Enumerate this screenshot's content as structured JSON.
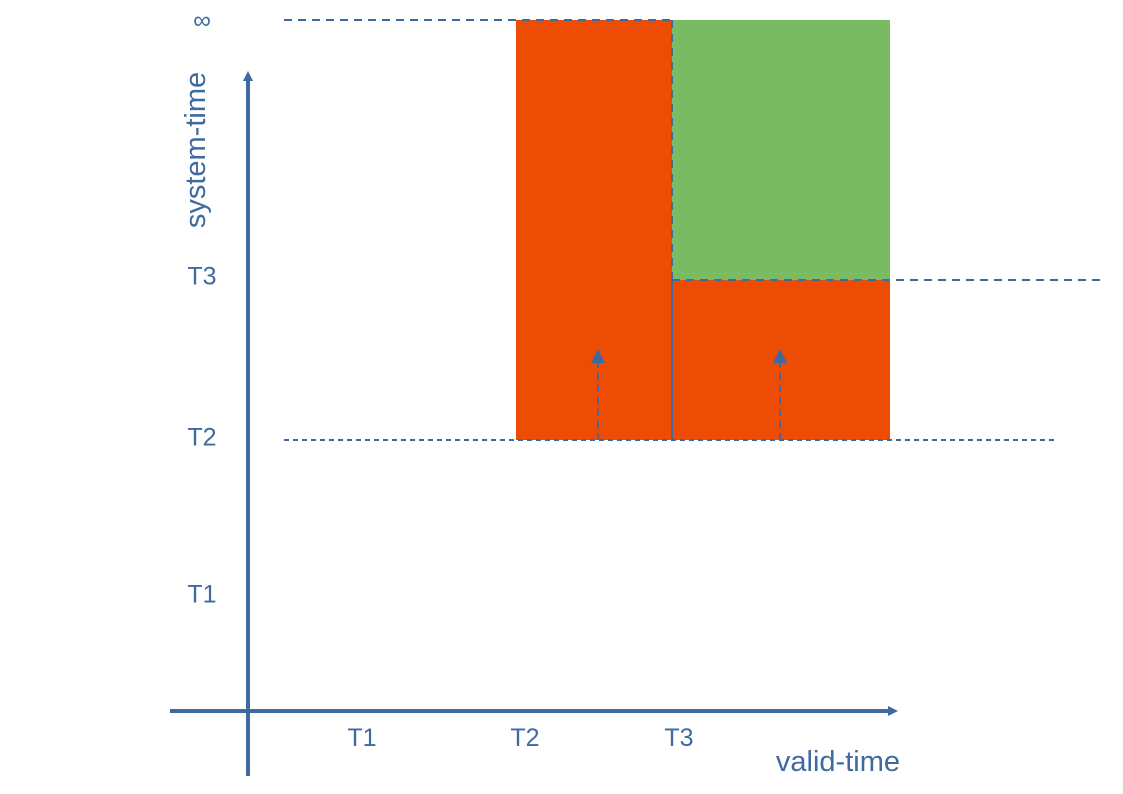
{
  "axes": {
    "x_title": "valid-time",
    "y_title": "system-time",
    "x_ticks": [
      "T1",
      "T2",
      "T3"
    ],
    "y_ticks": [
      "T1",
      "T2",
      "T3"
    ],
    "y_infinity_label": "∞"
  },
  "regions": [
    {
      "name": "orange-region-left",
      "valid_from": "T2",
      "valid_to": "T3",
      "system_from": "T2",
      "system_to": "∞",
      "color": "#ed4c05"
    },
    {
      "name": "orange-region-right",
      "valid_from": "T3",
      "valid_to": "",
      "system_from": "T2",
      "system_to": "T3",
      "color": "#ed4c05"
    },
    {
      "name": "green-region",
      "valid_from": "T3",
      "valid_to": "",
      "system_from": "T3",
      "system_to": "∞",
      "color": "#78bb63"
    }
  ],
  "colors": {
    "axis": "#3f6aa0",
    "dashed_line": "#3f6aa0",
    "orange": "#ed4c05",
    "green": "#78bb63"
  }
}
